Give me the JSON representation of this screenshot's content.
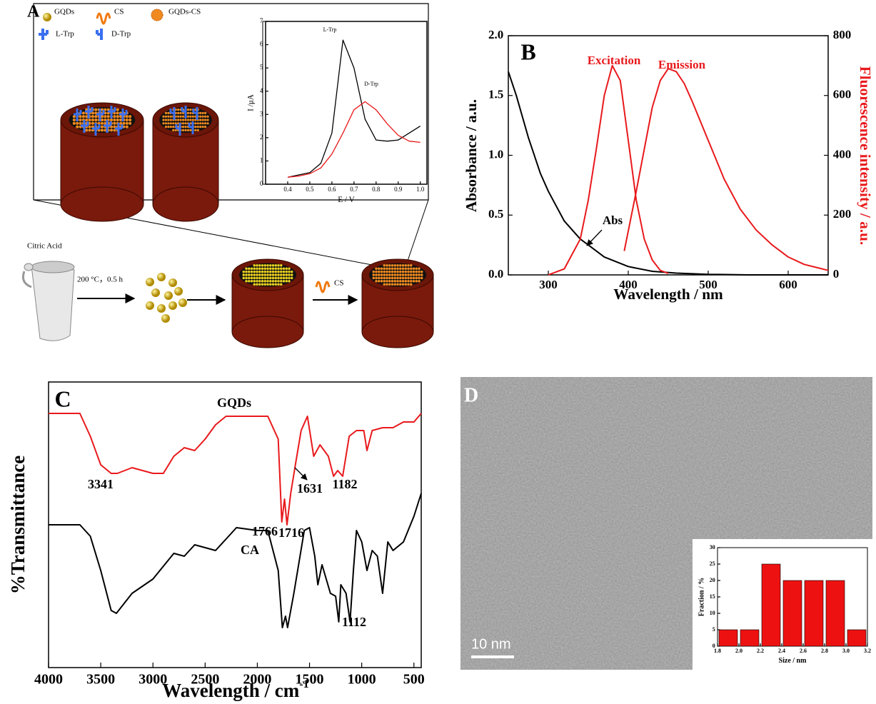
{
  "diagram": {
    "panel_label": "A",
    "legend": [
      "GQDs",
      "CS",
      "GQDs-CS",
      "L-Trp",
      "D-Trp"
    ],
    "start_label": "Citric Acid",
    "condition": "200 °C，0.5 h",
    "reagent": "CS"
  },
  "image": {
    "panel_label": "D",
    "scale_bar": "10 nm"
  },
  "chart_data": [
    {
      "type": "line",
      "xlabel": "E / V",
      "ylabel": "I /μA",
      "xlim": [
        0.3,
        1.03
      ],
      "xticks": [
        0.4,
        0.5,
        0.6,
        0.7,
        0.8,
        0.9,
        {
          "value": 1,
          "label": "1.0"
        }
      ],
      "ylim": [
        0,
        7
      ],
      "yticks": [
        0,
        1,
        2,
        3,
        4,
        5,
        6,
        7
      ],
      "series": [
        {
          "name": "L-Trp",
          "color": "#000000",
          "x": [
            0.4,
            0.45,
            0.5,
            0.55,
            0.6,
            0.65,
            0.7,
            0.75,
            0.8,
            0.85,
            0.9,
            0.95,
            1.0
          ],
          "values": [
            0.3,
            0.4,
            0.5,
            0.9,
            2.2,
            6.2,
            5.0,
            2.8,
            1.9,
            1.85,
            1.9,
            2.2,
            2.5
          ]
        },
        {
          "name": "D-Trp",
          "color": "#e8191c",
          "x": [
            0.4,
            0.45,
            0.5,
            0.55,
            0.6,
            0.65,
            0.7,
            0.75,
            0.8,
            0.85,
            0.9,
            0.95,
            1.0
          ],
          "values": [
            0.3,
            0.35,
            0.45,
            0.7,
            1.3,
            2.2,
            3.2,
            3.55,
            3.2,
            2.6,
            2.1,
            1.85,
            1.8
          ]
        }
      ],
      "annotations": [
        {
          "text": "L-Trp",
          "color": "#000000"
        },
        {
          "text": "D-Trp",
          "color": "#000000"
        }
      ]
    },
    {
      "type": "line",
      "panel_label": "B",
      "xlabel": "Wavelength / nm",
      "ylabel": "Absorbance / a.u.",
      "y2label": "Fluorescence intensity / a.u.",
      "y2color": "#e8191c",
      "xlim": [
        250,
        650
      ],
      "xticks": [
        300,
        400,
        500,
        600
      ],
      "ylim": [
        0,
        2
      ],
      "yticks": [
        {
          "value": 0,
          "label": "0.0"
        },
        0.5,
        {
          "value": 1,
          "label": "1.0"
        },
        1.5,
        {
          "value": 2,
          "label": "2.0"
        }
      ],
      "y2lim": [
        0,
        800
      ],
      "y2ticks": [
        0,
        200,
        400,
        600,
        800
      ],
      "series": [
        {
          "name": "Abs",
          "color": "#000000",
          "x": [
            250,
            260,
            275,
            290,
            300,
            320,
            340,
            350,
            370,
            400,
            430,
            460,
            500,
            550,
            600,
            650
          ],
          "values": [
            1.7,
            1.5,
            1.15,
            0.85,
            0.7,
            0.45,
            0.3,
            0.25,
            0.15,
            0.07,
            0.03,
            0.015,
            0.005,
            0,
            0,
            0
          ]
        },
        {
          "name": "Excitation",
          "color": "#e8191c",
          "axis": "y2",
          "x": [
            300,
            320,
            340,
            350,
            360,
            370,
            380,
            390,
            400,
            410,
            420,
            430,
            440,
            450
          ],
          "values": [
            0,
            20,
            120,
            250,
            420,
            600,
            700,
            650,
            450,
            250,
            120,
            50,
            15,
            5
          ]
        },
        {
          "name": "Emission",
          "color": "#e8191c",
          "axis": "y2",
          "x": [
            395,
            410,
            420,
            430,
            440,
            450,
            460,
            470,
            480,
            500,
            520,
            540,
            560,
            580,
            600,
            620,
            650
          ],
          "values": [
            80,
            280,
            420,
            560,
            650,
            690,
            680,
            640,
            580,
            450,
            320,
            220,
            150,
            100,
            60,
            35,
            15
          ]
        }
      ],
      "annotations": [
        {
          "text": "Abs",
          "color": "#000000"
        },
        {
          "text": "Excitation",
          "color": "#e8191c"
        },
        {
          "text": "Emission",
          "color": "#e8191c"
        }
      ]
    },
    {
      "type": "line",
      "panel_label": "C",
      "xlabel": "Wavelength / cm",
      "xlabel_superscript": "-1",
      "ylabel": "%Transmittance",
      "xlim": [
        4000,
        430
      ],
      "xticks": [
        4000,
        3500,
        3000,
        2500,
        2000,
        1500,
        1000,
        500
      ],
      "ylim": [
        0,
        100
      ],
      "series": [
        {
          "name": "GQDs",
          "color": "#e8191c",
          "x": [
            4000,
            3700,
            3600,
            3500,
            3400,
            3341,
            3200,
            3000,
            2900,
            2800,
            2700,
            2600,
            2500,
            2400,
            2300,
            2100,
            1900,
            1800,
            1766,
            1740,
            1716,
            1680,
            1631,
            1580,
            1520,
            1460,
            1400,
            1320,
            1270,
            1230,
            1182,
            1120,
            1050,
            980,
            950,
            900,
            800,
            700,
            600,
            500,
            430
          ],
          "values": [
            89,
            89,
            81,
            71,
            68,
            68,
            70,
            68,
            68,
            74,
            77,
            76,
            80,
            85,
            88,
            88,
            88,
            80,
            51,
            59,
            50,
            61,
            72,
            83,
            88,
            74,
            78,
            74,
            67,
            69,
            67,
            81,
            83,
            83,
            76,
            83,
            84,
            84,
            86,
            86,
            89
          ]
        },
        {
          "name": "CA",
          "color": "#000000",
          "x": [
            4000,
            3700,
            3600,
            3500,
            3400,
            3350,
            3200,
            3000,
            2800,
            2700,
            2600,
            2400,
            2300,
            2200,
            2000,
            1900,
            1800,
            1760,
            1730,
            1710,
            1650,
            1550,
            1500,
            1450,
            1420,
            1380,
            1300,
            1250,
            1220,
            1200,
            1150,
            1112,
            1080,
            1050,
            1000,
            950,
            900,
            850,
            800,
            750,
            700,
            600,
            500,
            430
          ],
          "values": [
            50,
            50,
            46,
            34,
            20,
            19,
            26,
            31,
            40,
            39,
            43,
            41,
            45,
            49,
            48,
            48,
            34,
            14,
            18,
            14,
            26,
            48,
            49,
            39,
            29,
            36,
            26,
            25,
            16,
            29,
            26,
            16,
            34,
            48,
            44,
            34,
            41,
            39,
            26,
            44,
            41,
            44,
            53,
            61
          ]
        }
      ],
      "annotations": [
        {
          "text": "GQDs",
          "color": "#000000"
        },
        {
          "text": "CA",
          "color": "#000000"
        },
        {
          "text": "3341",
          "color": "#000000"
        },
        {
          "text": "1766",
          "color": "#000000"
        },
        {
          "text": "1716",
          "color": "#000000"
        },
        {
          "text": "1631",
          "color": "#000000"
        },
        {
          "text": "1182",
          "color": "#000000"
        },
        {
          "text": "1112",
          "color": "#000000"
        }
      ]
    },
    {
      "type": "histogram",
      "xlabel": "Size / nm",
      "ylabel": "Fraction / %",
      "color": "#ee1111",
      "bins": [
        1.8,
        2.0,
        2.2,
        2.4,
        2.6,
        2.8,
        3.0,
        3.2
      ],
      "values": [
        5,
        5,
        25,
        20,
        20,
        20,
        5
      ],
      "xlim": [
        1.8,
        3.2
      ],
      "xticks": [
        1.8,
        {
          "value": 2,
          "label": "2.0"
        },
        2.2,
        2.4,
        2.6,
        2.8,
        {
          "value": 3,
          "label": "3.0"
        },
        3.2
      ],
      "ylim": [
        0,
        30
      ],
      "yticks": [
        0,
        5,
        10,
        15,
        20,
        25,
        30
      ]
    }
  ]
}
